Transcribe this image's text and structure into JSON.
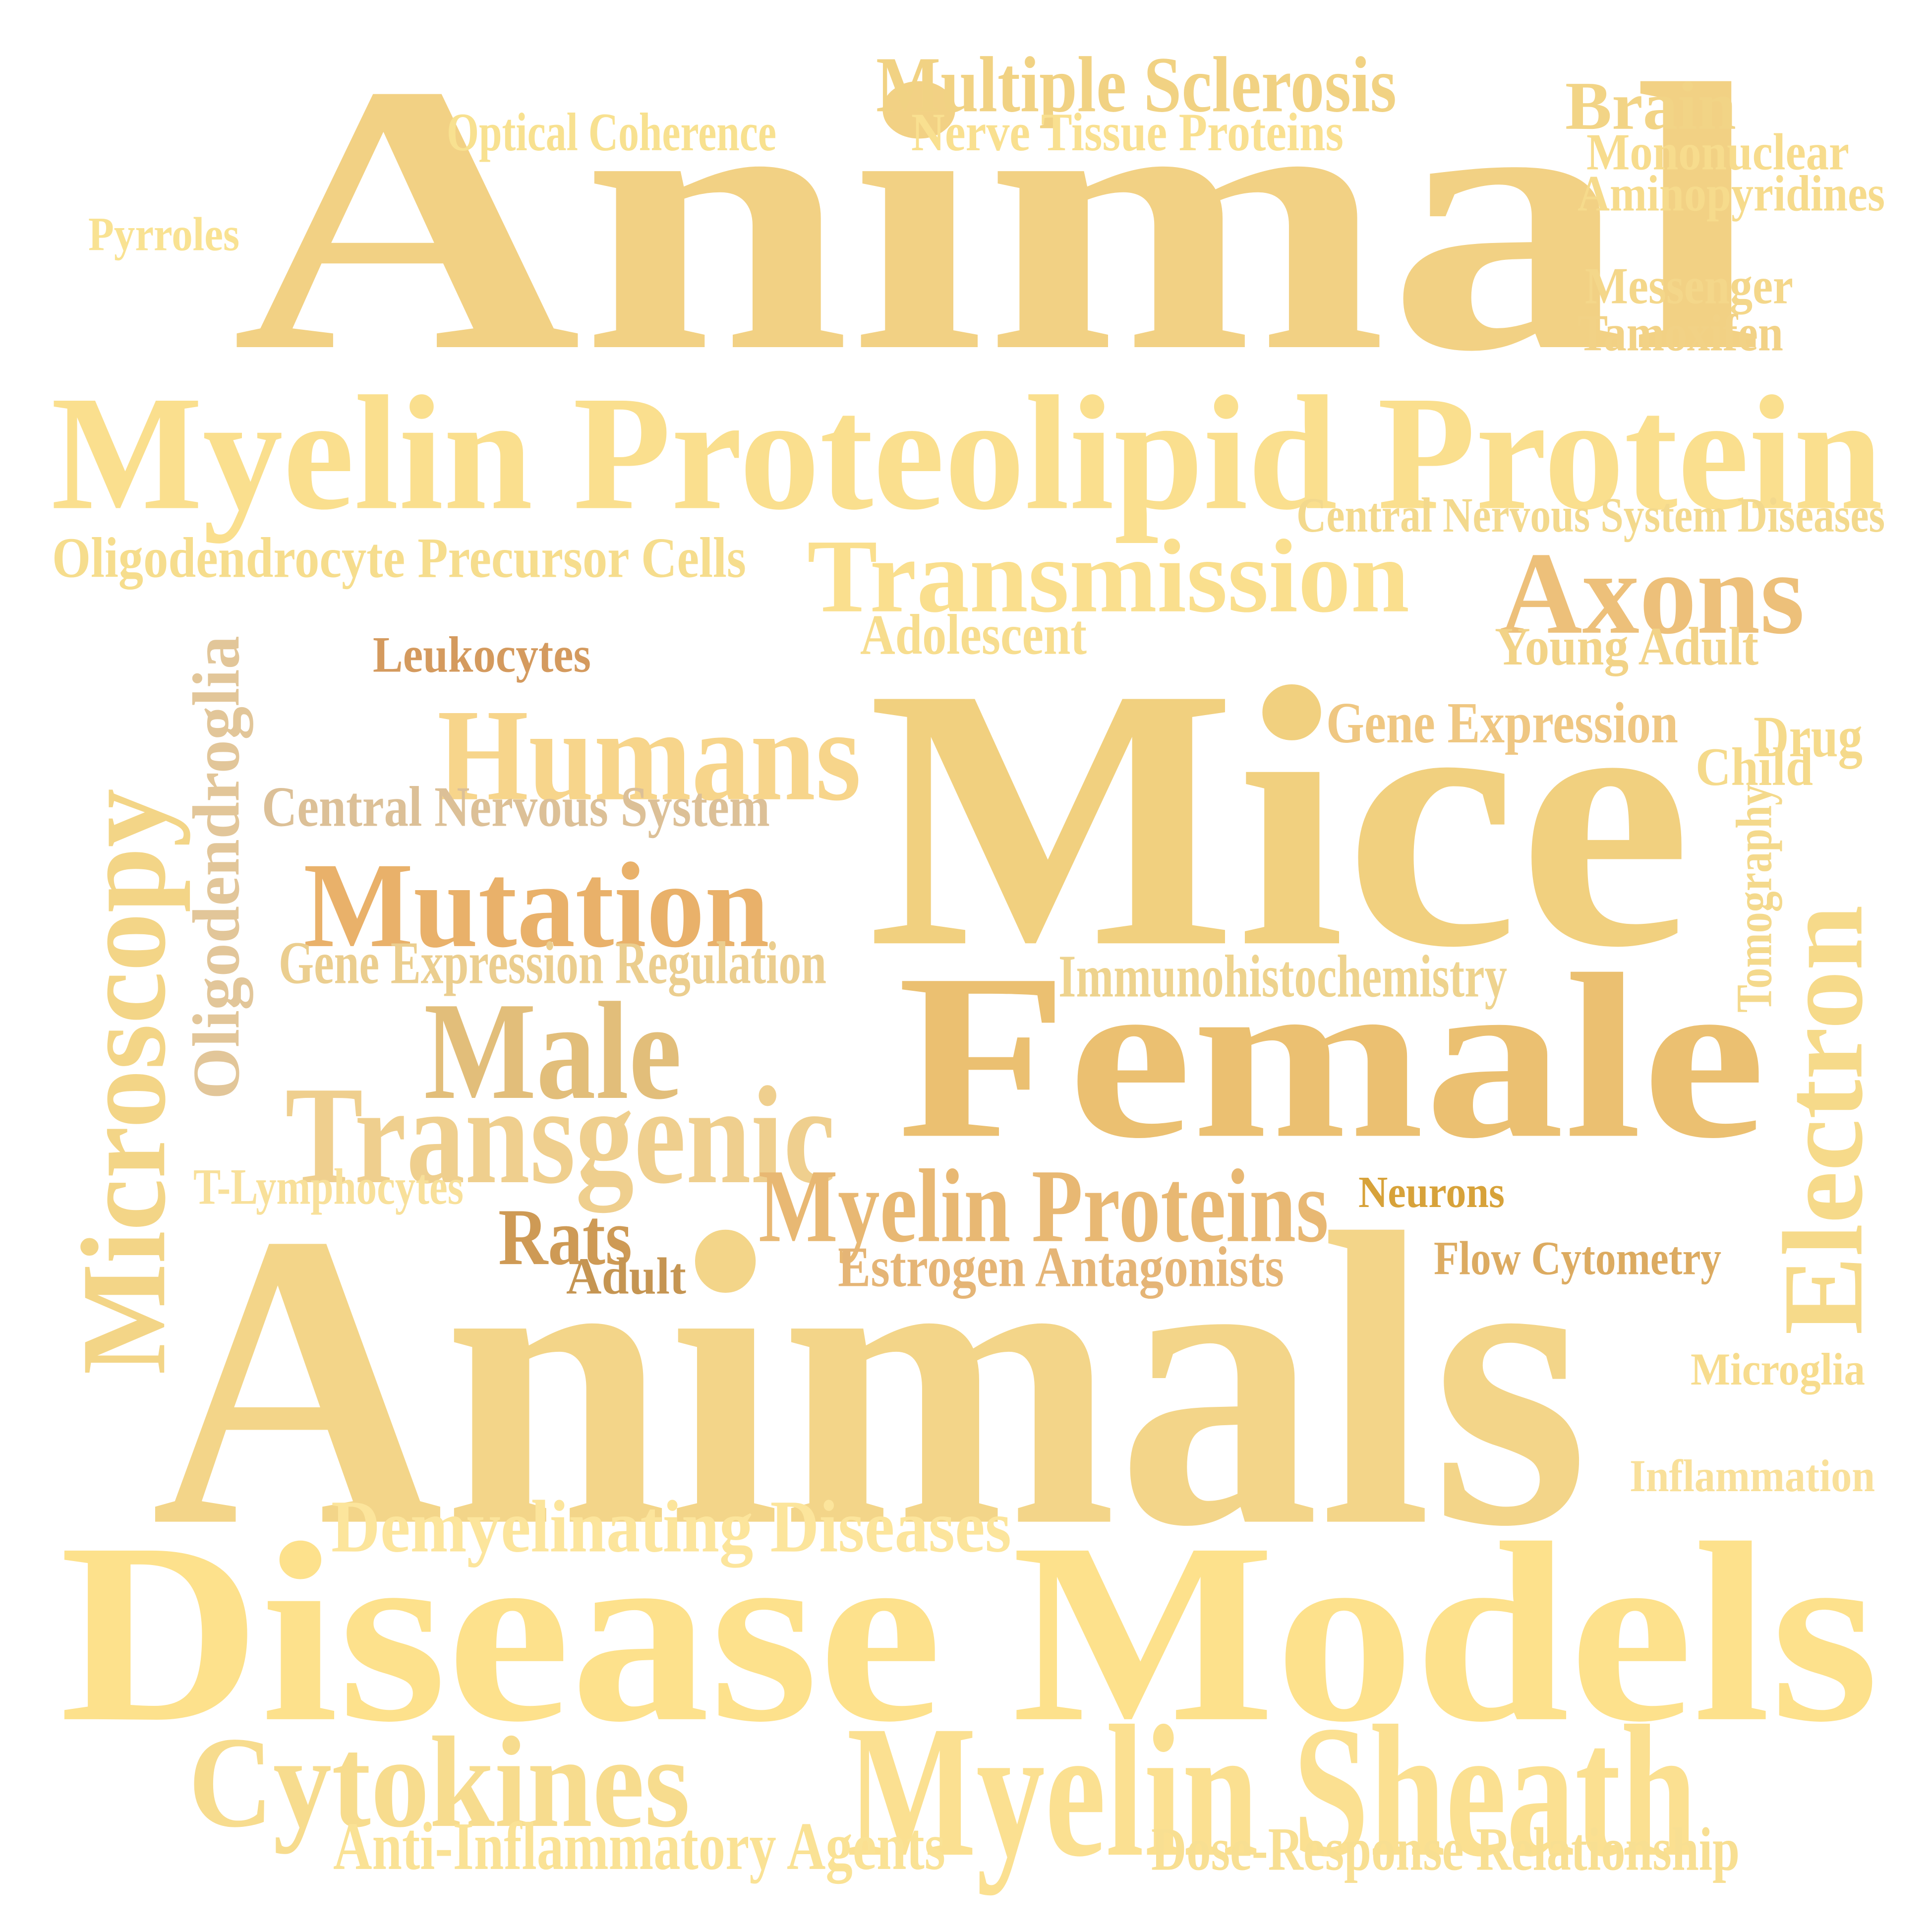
{
  "words": [
    {
      "id": "animal",
      "text": "Animal",
      "color": "#F2D184"
    },
    {
      "id": "multiple-sclerosis",
      "text": "Multiple Sclerosis",
      "color": "#F1D283"
    },
    {
      "id": "optical-coherence",
      "text": "Optical Coherence",
      "color": "#F8E190"
    },
    {
      "id": "nerve-tissue-proteins",
      "text": "Nerve Tissue Proteins",
      "color": "#F9E090"
    },
    {
      "id": "brain",
      "text": "Brain",
      "color": "#F2D486"
    },
    {
      "id": "mononuclear",
      "text": "Mononuclear",
      "color": "#F7DC8D"
    },
    {
      "id": "aminopyridines",
      "text": "Aminopyridines",
      "color": "#F6DB8C"
    },
    {
      "id": "pyrroles",
      "text": "Pyrroles",
      "color": "#F9E292"
    },
    {
      "id": "messenger",
      "text": "Messenger",
      "color": "#F4D78A"
    },
    {
      "id": "tamoxifen",
      "text": "Tamoxifen",
      "color": "#F2D286"
    },
    {
      "id": "myelin-proteolipid-protein",
      "text": "Myelin Proteolipid Protein",
      "color": "#FADF8E"
    },
    {
      "id": "central-nervous-system-diseases",
      "text": "Central Nervous System Diseases",
      "color": "#F3D98D"
    },
    {
      "id": "oligodendrocyte-precursor-cells",
      "text": "Oligodendrocyte Precursor Cells",
      "color": "#F6DD8D"
    },
    {
      "id": "transmission",
      "text": "Transmission",
      "color": "#FADF8E"
    },
    {
      "id": "axons",
      "text": "Axons",
      "color": "#EDC07A"
    },
    {
      "id": "adolescent",
      "text": "Adolescent",
      "color": "#F7DD8E"
    },
    {
      "id": "young-adult",
      "text": "Young Adult",
      "color": "#F2D387"
    },
    {
      "id": "leukocytes",
      "text": "Leukocytes",
      "color": "#D49A5E"
    },
    {
      "id": "oligodendroglia",
      "text": "Oligodendroglia",
      "color": "#E2C699"
    },
    {
      "id": "mice",
      "text": "Mice",
      "color": "#F1D07F"
    },
    {
      "id": "gene-expression",
      "text": "Gene Expression",
      "color": "#EFC782"
    },
    {
      "id": "drug",
      "text": "Drug",
      "color": "#F5DA8B"
    },
    {
      "id": "child",
      "text": "Child",
      "color": "#F5DA8B"
    },
    {
      "id": "humans",
      "text": "Humans",
      "color": "#F7D58B"
    },
    {
      "id": "central-nervous-system",
      "text": "Central Nervous System",
      "color": "#DCC097"
    },
    {
      "id": "microscopy",
      "text": "Microscopy",
      "color": "#F3D587"
    },
    {
      "id": "tomography",
      "text": "Tomography",
      "color": "#F4D98C"
    },
    {
      "id": "mutation",
      "text": "Mutation",
      "color": "#E9B16A"
    },
    {
      "id": "gene-expression-regulation",
      "text": "Gene Expression Regulation",
      "color": "#EBCE8F"
    },
    {
      "id": "immunohistochemistry",
      "text": "Immunohistochemistry",
      "color": "#EED38E"
    },
    {
      "id": "female",
      "text": "Female",
      "color": "#EBC071"
    },
    {
      "id": "electron",
      "text": "Electron",
      "color": "#F6DA8A"
    },
    {
      "id": "male",
      "text": "Male",
      "color": "#E2BE7A"
    },
    {
      "id": "transgenic",
      "text": "Transgenic",
      "color": "#EFCF8E"
    },
    {
      "id": "t-lymphocytes",
      "text": "T-Lymphocytes",
      "color": "#F8E09A"
    },
    {
      "id": "myelin-proteins",
      "text": "Myelin Proteins",
      "color": "#E8B873"
    },
    {
      "id": "neurons",
      "text": "Neurons",
      "color": "#D7A23A"
    },
    {
      "id": "rats",
      "text": "Rats",
      "color": "#CE9A55"
    },
    {
      "id": "adult",
      "text": "Adult",
      "color": "#C59552"
    },
    {
      "id": "estrogen-antagonists",
      "text": "Estrogen Antagonists",
      "color": "#E5B576"
    },
    {
      "id": "flow-cytometry",
      "text": "Flow Cytometry",
      "color": "#DCAB61"
    },
    {
      "id": "animals",
      "text": "Animals",
      "color": "#F3D589"
    },
    {
      "id": "microglia",
      "text": "Microglia",
      "color": "#F7DC8D"
    },
    {
      "id": "inflammation",
      "text": "Inflammation",
      "color": "#F9E09A"
    },
    {
      "id": "demyelinating-diseases",
      "text": "Demyelinating Diseases",
      "color": "#FCE59C"
    },
    {
      "id": "disease-models",
      "text": "Disease Models",
      "color": "#FDE18C"
    },
    {
      "id": "cytokines",
      "text": "Cytokines",
      "color": "#F7DC8E"
    },
    {
      "id": "myelin-sheath",
      "text": "Myelin Sheath",
      "color": "#FBE091"
    },
    {
      "id": "anti-inflammatory-agents",
      "text": "Anti-Inflammatory Agents",
      "color": "#FAE295"
    },
    {
      "id": "dose-response-relationship",
      "text": "Dose-Response Relationship",
      "color": "#F8DF92"
    }
  ]
}
